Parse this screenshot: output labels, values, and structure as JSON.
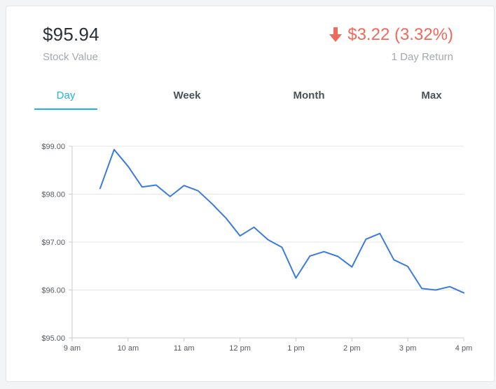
{
  "summary": {
    "stock_value": "$95.94",
    "stock_value_label": "Stock Value",
    "return_value": "$3.22 (3.32%)",
    "return_label": "1 Day Return",
    "return_direction_icon": "arrow-down-icon",
    "return_color": "#f06a5b"
  },
  "tabs": [
    {
      "label": "Day",
      "active": true
    },
    {
      "label": "Week",
      "active": false
    },
    {
      "label": "Month",
      "active": false
    },
    {
      "label": "Max",
      "active": false
    }
  ],
  "accent_color": "#1eb5e6",
  "line_color": "#3b7be0",
  "chart_data": {
    "type": "line",
    "title": "",
    "xlabel": "",
    "ylabel": "",
    "x_ticks": [
      "9 am",
      "10 am",
      "11 am",
      "12 pm",
      "1 pm",
      "2 pm",
      "3 pm",
      "4 pm"
    ],
    "y_ticks": [
      "$95.00",
      "$96.00",
      "$97.00",
      "$98.00",
      "$99.00"
    ],
    "xlim": [
      9,
      16
    ],
    "ylim": [
      95,
      99
    ],
    "grid": true,
    "series": [
      {
        "x": [
          9.5,
          9.75,
          10.0,
          10.25,
          10.5,
          10.75,
          11.0,
          11.25,
          11.5,
          11.75,
          12.0,
          12.25,
          12.5,
          12.75,
          13.0,
          13.25,
          13.5,
          13.75,
          14.0,
          14.25,
          14.5,
          14.75,
          15.0,
          15.25,
          15.5,
          15.75,
          16.0
        ],
        "values": [
          98.12,
          98.93,
          98.58,
          98.15,
          98.19,
          97.95,
          98.18,
          98.07,
          97.8,
          97.5,
          97.13,
          97.31,
          97.05,
          96.89,
          96.25,
          96.71,
          96.8,
          96.7,
          96.48,
          97.06,
          97.18,
          96.63,
          96.49,
          96.03,
          96.0,
          96.07,
          95.94
        ]
      }
    ]
  }
}
